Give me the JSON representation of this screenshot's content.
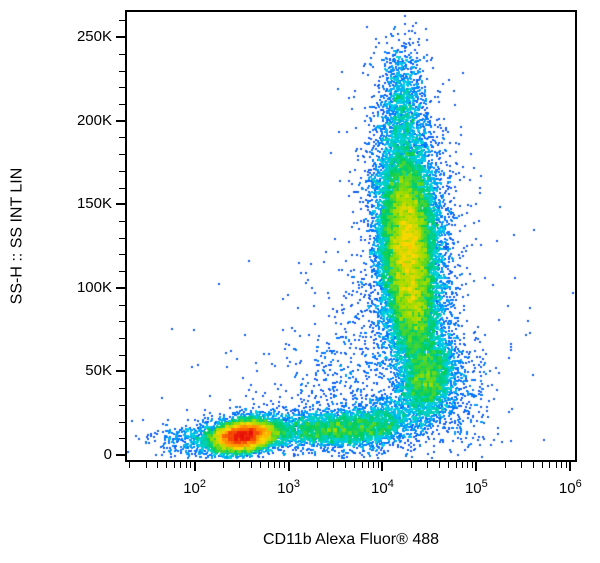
{
  "figure": {
    "background": "#ffffff",
    "frame_color": "#000000",
    "text_color": "#000000"
  },
  "chart_data": {
    "type": "scatter",
    "subtype": "flow-cytometry-pseudocolor-density",
    "title": "",
    "xlabel": "CD11b Alexa Fluor® 488",
    "ylabel": "SS-H :: SS INT LIN",
    "x_scale": "log10",
    "x_range_log10": [
      1.28,
      6.05
    ],
    "x_tick_base": "10",
    "x_major_ticks_exponents": [
      2,
      3,
      4,
      5,
      6
    ],
    "y_scale": "linear",
    "y_range": [
      -3000,
      265000
    ],
    "y_major_ticks": [
      0,
      50000,
      100000,
      150000,
      200000,
      250000
    ],
    "y_tick_labels": [
      "0",
      "50K",
      "100K",
      "150K",
      "200K",
      "250K"
    ],
    "y_minor_step": 10000,
    "grid": false,
    "legend": false,
    "seed": 1337,
    "bin_size": 3,
    "point_size": 2,
    "colormap": [
      {
        "t": 0.0,
        "c": [
          45,
          45,
          215
        ]
      },
      {
        "t": 0.22,
        "c": [
          0,
          120,
          255
        ]
      },
      {
        "t": 0.38,
        "c": [
          0,
          210,
          230
        ]
      },
      {
        "t": 0.52,
        "c": [
          0,
          205,
          95
        ]
      },
      {
        "t": 0.64,
        "c": [
          150,
          220,
          0
        ]
      },
      {
        "t": 0.75,
        "c": [
          255,
          215,
          0
        ]
      },
      {
        "t": 0.86,
        "c": [
          255,
          130,
          0
        ]
      },
      {
        "t": 1.0,
        "c": [
          230,
          10,
          10
        ]
      }
    ],
    "populations": [
      {
        "label": "dense low-left core (red)",
        "cx": 2.52,
        "sx": 0.16,
        "cy": 11000,
        "sy": 4200,
        "corr": 0.25,
        "n": 9000
      },
      {
        "label": "low-left halo",
        "cx": 2.55,
        "sx": 0.28,
        "cy": 12000,
        "sy": 7000,
        "corr": 0.2,
        "n": 1200
      },
      {
        "label": "far-left sparse specks",
        "cx": 2.0,
        "sx": 0.22,
        "cy": 9000,
        "sy": 5000,
        "corr": 0,
        "n": 350
      },
      {
        "label": "horizontal green smear",
        "cx": 3.45,
        "sx": 0.36,
        "cy": 15000,
        "sy": 5200,
        "corr": 0.1,
        "n": 2600
      },
      {
        "label": "smear-to-column bridge",
        "cx": 3.95,
        "sx": 0.22,
        "cy": 19000,
        "sy": 7500,
        "corr": 0.2,
        "n": 1100
      },
      {
        "label": "main vertical column core (yellow)",
        "cx": 4.28,
        "sx": 0.15,
        "cy": 125000,
        "sy": 31000,
        "corr": -0.15,
        "n": 16000
      },
      {
        "label": "main column halo",
        "cx": 4.3,
        "sx": 0.26,
        "cy": 125000,
        "sy": 48000,
        "corr": -0.1,
        "n": 2500
      },
      {
        "label": "column top extension",
        "cx": 4.22,
        "sx": 0.11,
        "cy": 212000,
        "sy": 17000,
        "corr": 0,
        "n": 900
      },
      {
        "label": "lower-right cluster (cyan-green)",
        "cx": 4.5,
        "sx": 0.14,
        "cy": 45000,
        "sy": 12500,
        "corr": 0.2,
        "n": 2800
      },
      {
        "label": "column lower bridge",
        "cx": 4.35,
        "sx": 0.12,
        "cy": 77000,
        "sy": 16000,
        "corr": 0,
        "n": 1700
      },
      {
        "label": "right sparse tail",
        "cx": 4.8,
        "sx": 0.22,
        "cy": 38000,
        "sy": 20000,
        "corr": -0.3,
        "n": 320
      },
      {
        "label": "diagonal sparse trail",
        "cx": 3.55,
        "sx": 0.33,
        "cy": 50000,
        "sy": 32000,
        "corr": 0.75,
        "n": 320
      },
      {
        "label": "wide sparse background",
        "cx": 3.6,
        "sx": 0.9,
        "cy": 40000,
        "sy": 40000,
        "corr": 0.3,
        "n": 450
      }
    ]
  }
}
